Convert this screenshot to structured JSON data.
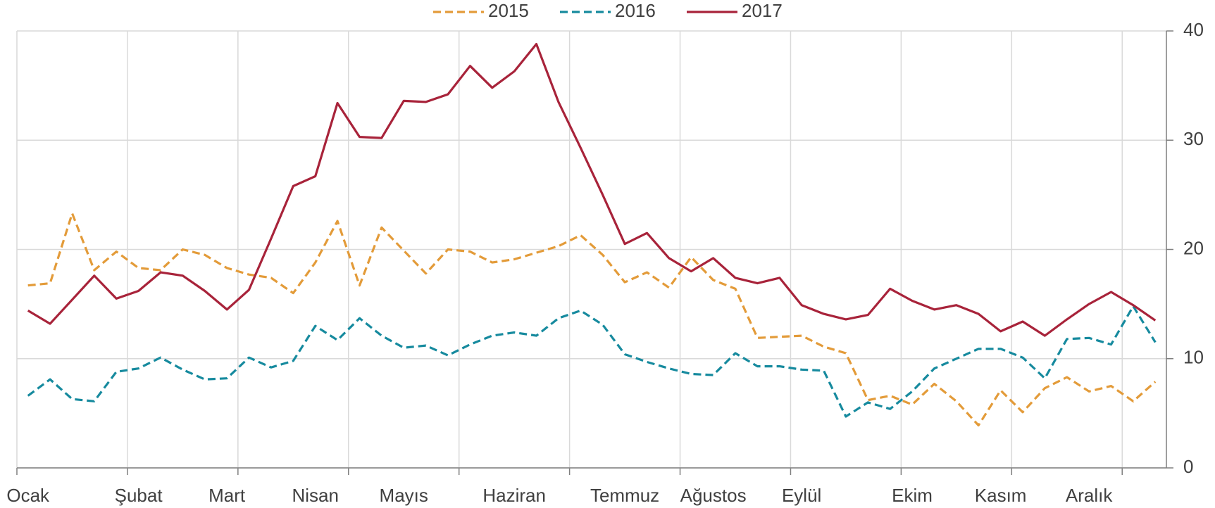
{
  "chart_data": {
    "type": "line",
    "categories": [
      "Ocak",
      null,
      null,
      null,
      null,
      "Şubat",
      null,
      null,
      null,
      "Mart",
      null,
      null,
      null,
      "Nisan",
      null,
      null,
      null,
      "Mayıs",
      null,
      null,
      null,
      null,
      "Haziran",
      null,
      null,
      null,
      null,
      "Temmuz",
      null,
      null,
      null,
      "Ağustos",
      null,
      null,
      null,
      "Eylül",
      null,
      null,
      null,
      null,
      "Ekim",
      null,
      null,
      null,
      "Kasım",
      null,
      null,
      null,
      "Aralık",
      null,
      null,
      null
    ],
    "series": [
      {
        "name": "2015",
        "color": "#e39b39",
        "dashed": true,
        "values": [
          16.7,
          16.9,
          23.3,
          18.1,
          19.8,
          18.3,
          18.1,
          20.0,
          19.5,
          18.3,
          17.7,
          17.4,
          16.0,
          18.8,
          22.6,
          16.7,
          22.0,
          19.9,
          17.8,
          20.0,
          19.8,
          18.8,
          19.1,
          19.7,
          20.3,
          21.3,
          19.5,
          17.0,
          17.9,
          16.5,
          19.3,
          17.2,
          16.4,
          11.9,
          12.0,
          12.1,
          11.1,
          10.5,
          6.2,
          6.6,
          5.8,
          7.7,
          6.1,
          3.9,
          7.1,
          5.1,
          7.3,
          8.3,
          7.0,
          7.5,
          6.1,
          7.9
        ]
      },
      {
        "name": "2016",
        "color": "#168a9e",
        "dashed": true,
        "values": [
          6.6,
          8.1,
          6.3,
          6.1,
          8.8,
          9.1,
          10.1,
          9.0,
          8.1,
          8.2,
          10.1,
          9.2,
          9.8,
          13.0,
          11.7,
          13.7,
          12.1,
          11.0,
          11.2,
          10.3,
          11.3,
          12.1,
          12.4,
          12.1,
          13.7,
          14.4,
          13.1,
          10.4,
          9.7,
          9.1,
          8.6,
          8.5,
          10.5,
          9.3,
          9.3,
          9.0,
          8.9,
          4.7,
          6.0,
          5.4,
          7.0,
          9.1,
          10.0,
          10.9,
          10.9,
          10.1,
          8.2,
          11.8,
          11.9,
          11.3,
          14.8,
          11.5
        ]
      },
      {
        "name": "2017",
        "color": "#a8233a",
        "dashed": false,
        "values": [
          14.4,
          13.2,
          15.4,
          17.6,
          15.5,
          16.2,
          17.9,
          17.6,
          16.2,
          14.5,
          16.3,
          21.0,
          25.8,
          26.7,
          33.4,
          30.3,
          30.2,
          33.6,
          33.5,
          34.2,
          36.8,
          34.8,
          36.3,
          38.8,
          33.5,
          29.3,
          25.0,
          20.5,
          21.5,
          19.2,
          18.0,
          19.2,
          17.4,
          16.9,
          17.4,
          14.9,
          14.1,
          13.6,
          14.0,
          16.4,
          15.3,
          14.5,
          14.9,
          14.1,
          12.5,
          13.4,
          12.1,
          13.6,
          15.0,
          16.1,
          14.9,
          13.5
        ]
      }
    ],
    "ylim": [
      0,
      40
    ],
    "yticks": [
      0,
      10,
      20,
      30,
      40
    ],
    "y_axis_side": "right",
    "grid": true,
    "xtick_interval": 5,
    "legend": "top"
  }
}
